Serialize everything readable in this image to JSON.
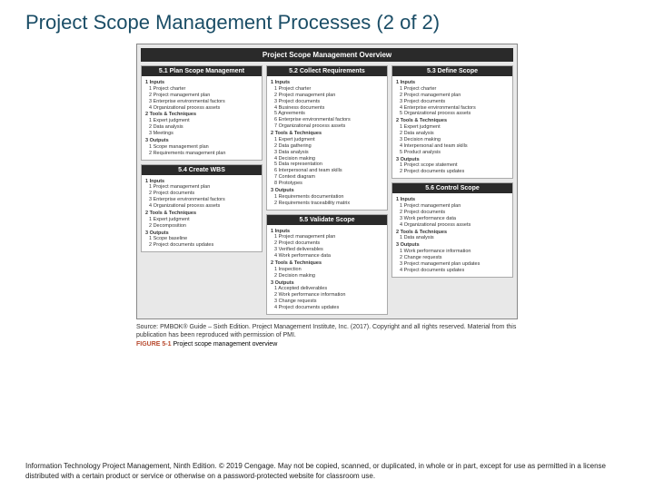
{
  "title": "Project Scope Management Processes (2 of 2)",
  "overview_header": "Project Scope Management Overview",
  "columns": [
    [
      {
        "header": "5.1 Plan Scope Management",
        "sections": [
          {
            "label": "1 Inputs",
            "items": [
              "1 Project charter",
              "2 Project management plan",
              "3 Enterprise environmental factors",
              "4 Organizational process assets"
            ]
          },
          {
            "label": "2 Tools & Techniques",
            "items": [
              "1 Expert judgment",
              "2 Data analysis",
              "3 Meetings"
            ]
          },
          {
            "label": "3 Outputs",
            "items": [
              "1 Scope management plan",
              "2 Requirements management plan"
            ]
          }
        ]
      },
      {
        "header": "5.4 Create WBS",
        "sections": [
          {
            "label": "1 Inputs",
            "items": [
              "1 Project management plan",
              "2 Project documents",
              "3 Enterprise environmental factors",
              "4 Organizational process assets"
            ]
          },
          {
            "label": "2 Tools & Techniques",
            "items": [
              "1 Expert judgment",
              "2 Decomposition"
            ]
          },
          {
            "label": "3 Outputs",
            "items": [
              "1 Scope baseline",
              "2 Project documents updates"
            ]
          }
        ]
      }
    ],
    [
      {
        "header": "5.2 Collect Requirements",
        "sections": [
          {
            "label": "1 Inputs",
            "items": [
              "1 Project charter",
              "2 Project management plan",
              "3 Project documents",
              "4 Business documents",
              "5 Agreements",
              "6 Enterprise environmental factors",
              "7 Organizational process assets"
            ]
          },
          {
            "label": "2 Tools & Techniques",
            "items": [
              "1 Expert judgment",
              "2 Data gathering",
              "3 Data analysis",
              "4 Decision making",
              "5 Data representation",
              "6 Interpersonal and team skills",
              "7 Context diagram",
              "8 Prototypes"
            ]
          },
          {
            "label": "3 Outputs",
            "items": [
              "1 Requirements documentation",
              "2 Requirements traceability matrix"
            ]
          }
        ]
      },
      {
        "header": "5.5 Validate Scope",
        "sections": [
          {
            "label": "1 Inputs",
            "items": [
              "1 Project management plan",
              "2 Project documents",
              "3 Verified deliverables",
              "4 Work performance data"
            ]
          },
          {
            "label": "2 Tools & Techniques",
            "items": [
              "1 Inspection",
              "2 Decision making"
            ]
          },
          {
            "label": "3 Outputs",
            "items": [
              "1 Accepted deliverables",
              "2 Work performance information",
              "3 Change requests",
              "4 Project documents updates"
            ]
          }
        ]
      }
    ],
    [
      {
        "header": "5.3 Define Scope",
        "sections": [
          {
            "label": "1 Inputs",
            "items": [
              "1 Project charter",
              "2 Project management plan",
              "3 Project documents",
              "4 Enterprise environmental factors",
              "5 Organizational process assets"
            ]
          },
          {
            "label": "2 Tools & Techniques",
            "items": [
              "1 Expert judgment",
              "2 Data analysis",
              "3 Decision making",
              "4 Interpersonal and team skills",
              "5 Product analysis"
            ]
          },
          {
            "label": "3 Outputs",
            "items": [
              "1 Project scope statement",
              "2 Project documents updates"
            ]
          }
        ]
      },
      {
        "header": "5.6 Control Scope",
        "sections": [
          {
            "label": "1 Inputs",
            "items": [
              "1 Project management plan",
              "2 Project documents",
              "3 Work performance data",
              "4 Organizational process assets"
            ]
          },
          {
            "label": "2 Tools & Techniques",
            "items": [
              "1 Data analysis"
            ]
          },
          {
            "label": "3 Outputs",
            "items": [
              "1 Work performance information",
              "2 Change requests",
              "3 Project management plan updates",
              "4 Project documents updates"
            ]
          }
        ]
      }
    ]
  ],
  "source": "Source: PMBOK® Guide – Sixth Edition. Project Management Institute, Inc. (2017). Copyright and all rights reserved. Material from this publication has been reproduced with permission of PMI.",
  "figure_label_prefix": "FIGURE 5-1",
  "figure_label_text": "Project scope management overview",
  "footer": "Information Technology Project Management, Ninth Edition. © 2019 Cengage. May not be copied, scanned, or duplicated, in whole or in part, except for use as permitted in a license distributed with a certain product or service or otherwise on a password-protected website for classroom use."
}
